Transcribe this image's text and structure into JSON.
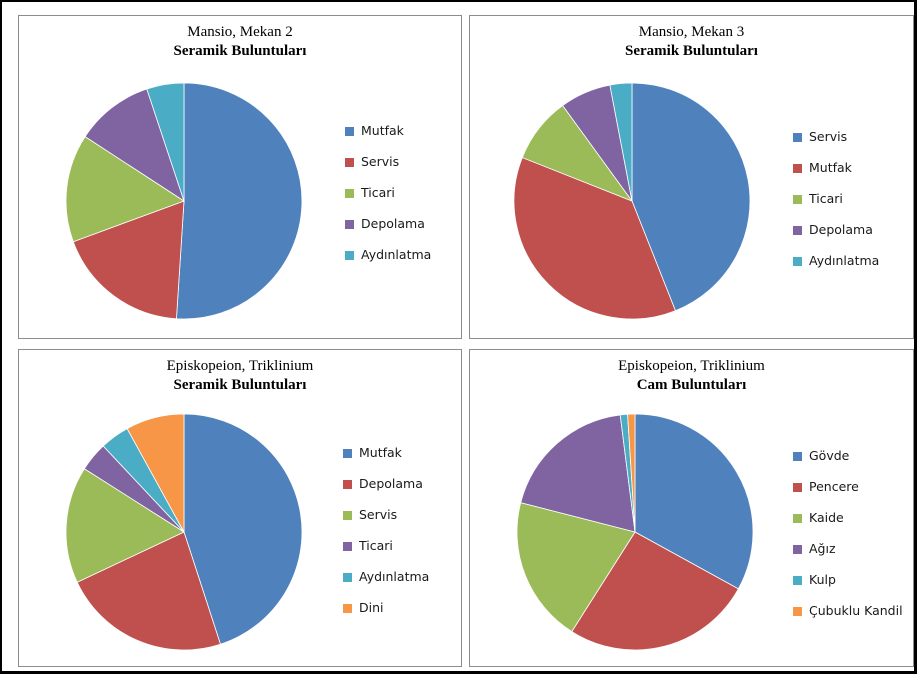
{
  "chart_data": [
    {
      "type": "pie",
      "title": "Mansio, Mekan 2",
      "subtitle": "Seramik Buluntuları",
      "legend_position": "right",
      "categories": [
        "Mutfak",
        "Servis",
        "Ticari",
        "Depolama",
        "Aydınlatma"
      ],
      "values": [
        50,
        18,
        14.5,
        10.5,
        5
      ],
      "colors": [
        "#4F81BD",
        "#C0504D",
        "#9BBB59",
        "#8064A2",
        "#4BACC6"
      ]
    },
    {
      "type": "pie",
      "title": "Mansio, Mekan 3",
      "subtitle": "Seramik Buluntuları",
      "legend_position": "right",
      "categories": [
        "Servis",
        "Mutfak",
        "Ticari",
        "Depolama",
        "Aydınlatma"
      ],
      "values": [
        44,
        37,
        9,
        7,
        3
      ],
      "colors": [
        "#4F81BD",
        "#C0504D",
        "#9BBB59",
        "#8064A2",
        "#4BACC6"
      ]
    },
    {
      "type": "pie",
      "title": "Episkopeion, Triklinium",
      "subtitle": "Seramik Buluntuları",
      "legend_position": "right",
      "categories": [
        "Mutfak",
        "Depolama",
        "Servis",
        "Ticari",
        "Aydınlatma",
        "Dini"
      ],
      "values": [
        45,
        23,
        16,
        4,
        4,
        8
      ],
      "colors": [
        "#4F81BD",
        "#C0504D",
        "#9BBB59",
        "#8064A2",
        "#4BACC6",
        "#F79646"
      ]
    },
    {
      "type": "pie",
      "title": "Episkopeion, Triklinium",
      "subtitle": "Cam Buluntuları",
      "legend_position": "right",
      "categories": [
        "Gövde",
        "Pencere",
        "Kaide",
        "Ağız",
        "Kulp",
        "Çubuklu Kandil"
      ],
      "values": [
        33,
        26,
        20,
        19,
        1,
        1
      ],
      "colors": [
        "#4F81BD",
        "#C0504D",
        "#9BBB59",
        "#8064A2",
        "#4BACC6",
        "#F79646"
      ]
    }
  ]
}
